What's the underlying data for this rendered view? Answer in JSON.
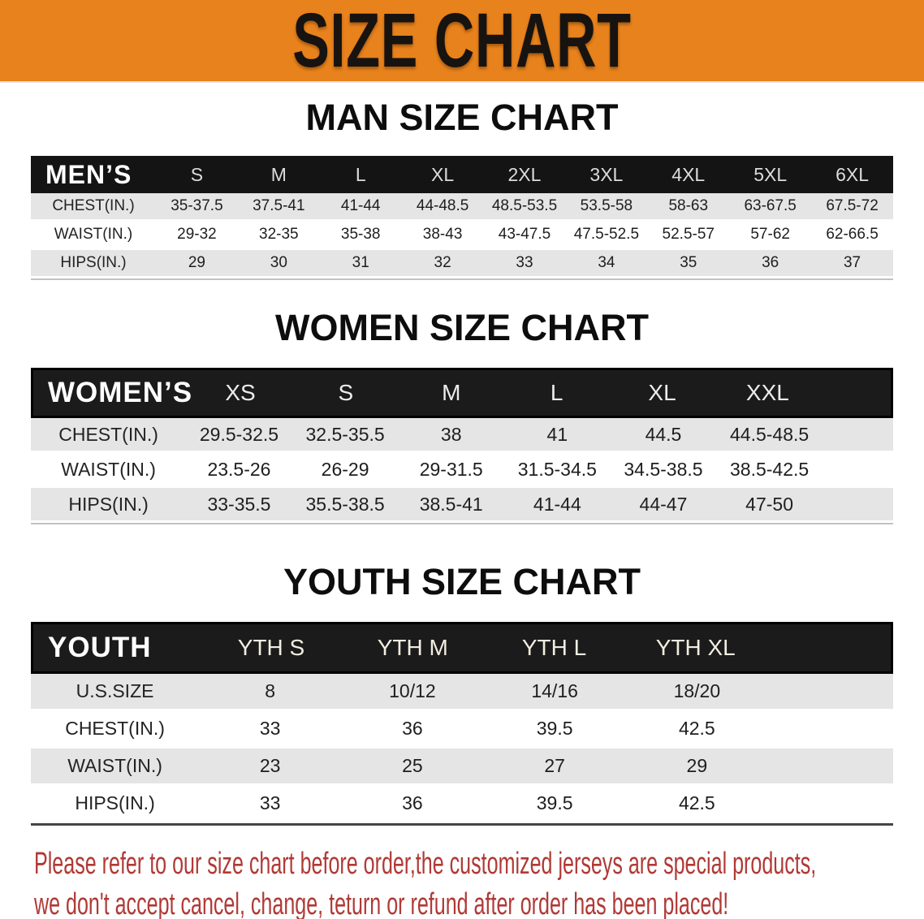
{
  "banner": {
    "title": "SIZE CHART",
    "background_color": "#e8821c"
  },
  "colors": {
    "banner_orange": "#e8821c",
    "header_band_black": "#141414",
    "stripe_gray": "#e5e5e6",
    "disclaimer_red": "#b03a36"
  },
  "chart_data": [
    {
      "type": "table",
      "title": "MAN SIZE CHART",
      "corner_label": "MEN’S",
      "columns": [
        "S",
        "M",
        "L",
        "XL",
        "2XL",
        "3XL",
        "4XL",
        "5XL",
        "6XL"
      ],
      "rows": [
        {
          "label": "CHEST(IN.)",
          "values": [
            "35-37.5",
            "37.5-41",
            "41-44",
            "44-48.5",
            "48.5-53.5",
            "53.5-58",
            "58-63",
            "63-67.5",
            "67.5-72"
          ]
        },
        {
          "label": "WAIST(IN.)",
          "values": [
            "29-32",
            "32-35",
            "35-38",
            "38-43",
            "43-47.5",
            "47.5-52.5",
            "52.5-57",
            "57-62",
            "62-66.5"
          ]
        },
        {
          "label": "HIPS(IN.)",
          "values": [
            "29",
            "30",
            "31",
            "32",
            "33",
            "34",
            "35",
            "36",
            "37"
          ]
        }
      ]
    },
    {
      "type": "table",
      "title": "WOMEN SIZE CHART",
      "corner_label": "WOMEN’S",
      "columns": [
        "XS",
        "S",
        "M",
        "L",
        "XL",
        "XXL"
      ],
      "rows": [
        {
          "label": "CHEST(IN.)",
          "values": [
            "29.5-32.5",
            "32.5-35.5",
            "38",
            "41",
            "44.5",
            "44.5-48.5"
          ]
        },
        {
          "label": "WAIST(IN.)",
          "values": [
            "23.5-26",
            "26-29",
            "29-31.5",
            "31.5-34.5",
            "34.5-38.5",
            "38.5-42.5"
          ]
        },
        {
          "label": "HIPS(IN.)",
          "values": [
            "33-35.5",
            "35.5-38.5",
            "38.5-41",
            "41-44",
            "44-47",
            "47-50"
          ]
        }
      ]
    },
    {
      "type": "table",
      "title": "YOUTH SIZE CHART",
      "corner_label": "YOUTH",
      "columns": [
        "YTH S",
        "YTH M",
        "YTH L",
        "YTH XL"
      ],
      "rows": [
        {
          "label": "U.S.SIZE",
          "values": [
            "8",
            "10/12",
            "14/16",
            "18/20"
          ]
        },
        {
          "label": "CHEST(IN.)",
          "values": [
            "33",
            "36",
            "39.5",
            "42.5"
          ]
        },
        {
          "label": "WAIST(IN.)",
          "values": [
            "23",
            "25",
            "27",
            "29"
          ]
        },
        {
          "label": "HIPS(IN.)",
          "values": [
            "33",
            "36",
            "39.5",
            "42.5"
          ]
        }
      ]
    }
  ],
  "footer": {
    "line1": "Please refer to our size chart before order,the customized jerseys are special products,",
    "line2": "we don't accept cancel, change, teturn or refund after order has been placed!"
  }
}
